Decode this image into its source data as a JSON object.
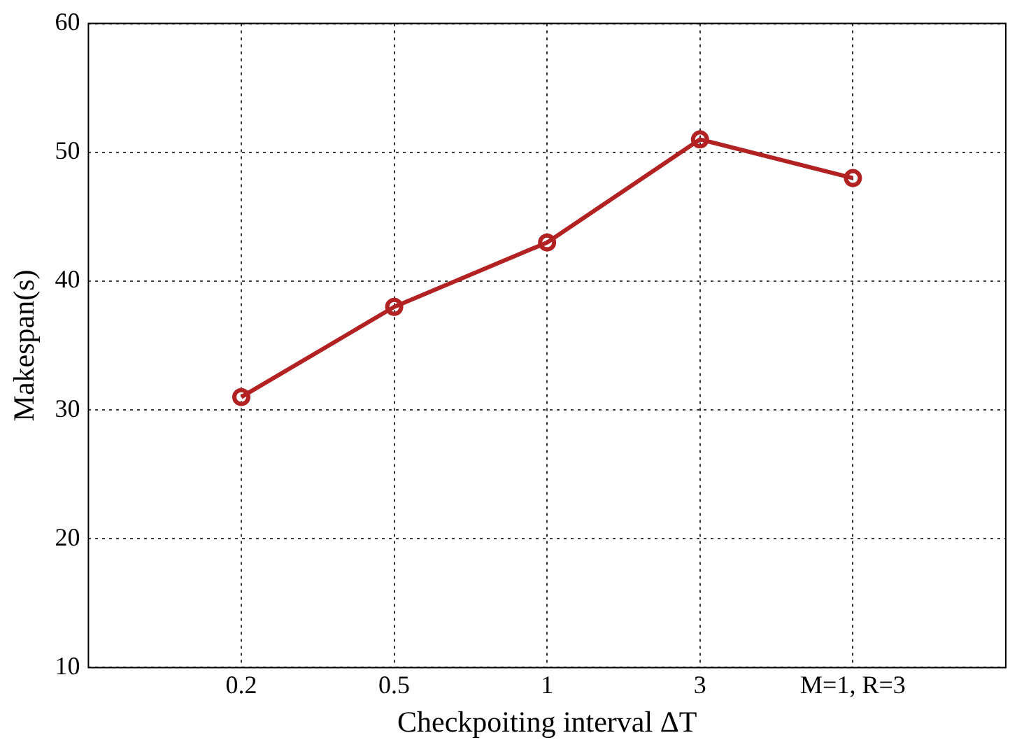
{
  "chart_data": {
    "type": "line",
    "xlabel": "Checkpoiting interval ΔT",
    "ylabel": "Makespan(s)",
    "categories": [
      "0.2",
      "0.5",
      "1",
      "3",
      "M=1, R=3"
    ],
    "series": [
      {
        "color": "#b22222",
        "values": [
          31,
          38,
          43,
          51,
          48
        ]
      }
    ],
    "ylim": [
      10,
      60
    ],
    "yticks": [
      10,
      20,
      30,
      40,
      50,
      60
    ],
    "grid": true,
    "marker": "circle",
    "line_style": "solid",
    "legend": false
  }
}
